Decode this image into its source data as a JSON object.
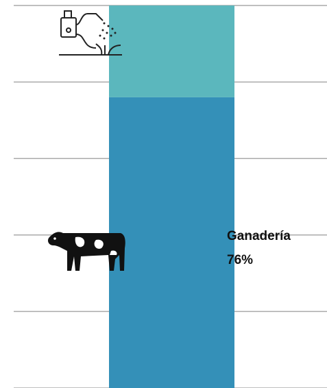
{
  "chart_data": {
    "type": "bar",
    "stacked": true,
    "series": [
      {
        "name": "Ganadería",
        "color": "#3490b8",
        "values": [
          76
        ],
        "value_labels": [
          "76%"
        ]
      },
      {
        "color": "#5bb7bd",
        "values": [
          24
        ]
      }
    ],
    "ylim": [
      0,
      100
    ],
    "yticks": [
      0,
      20,
      40,
      60,
      80,
      100
    ],
    "grid": true
  }
}
